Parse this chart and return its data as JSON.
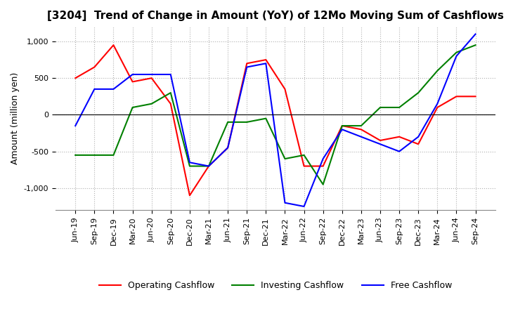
{
  "title": "[3204]  Trend of Change in Amount (YoY) of 12Mo Moving Sum of Cashflows",
  "ylabel": "Amount (million yen)",
  "ylim": [
    -1300,
    1200
  ],
  "yticks": [
    -1000,
    -500,
    0,
    500,
    1000
  ],
  "x_labels": [
    "Jun-19",
    "Sep-19",
    "Dec-19",
    "Mar-20",
    "Jun-20",
    "Sep-20",
    "Dec-20",
    "Mar-21",
    "Jun-21",
    "Sep-21",
    "Dec-21",
    "Mar-22",
    "Jun-22",
    "Sep-22",
    "Dec-22",
    "Mar-23",
    "Jun-23",
    "Sep-23",
    "Dec-23",
    "Mar-24",
    "Jun-24",
    "Sep-24"
  ],
  "operating": [
    500,
    650,
    950,
    450,
    500,
    150,
    -1100,
    -700,
    -450,
    700,
    750,
    350,
    -700,
    -700,
    -150,
    -200,
    -350,
    -300,
    -400,
    100,
    250,
    250
  ],
  "investing": [
    -550,
    -550,
    -550,
    100,
    150,
    300,
    -700,
    -700,
    -100,
    -100,
    -50,
    -600,
    -550,
    -950,
    -150,
    -150,
    100,
    100,
    300,
    600,
    850,
    950
  ],
  "free": [
    -150,
    350,
    350,
    550,
    550,
    550,
    -650,
    -700,
    -450,
    650,
    700,
    -1200,
    -1250,
    -600,
    -200,
    -300,
    -400,
    -500,
    -300,
    150,
    800,
    1100
  ],
  "operating_color": "#ff0000",
  "investing_color": "#008000",
  "free_color": "#0000ff",
  "background_color": "#ffffff",
  "grid_color": "#b0b0b0",
  "title_fontsize": 11,
  "label_fontsize": 9,
  "tick_fontsize": 8
}
